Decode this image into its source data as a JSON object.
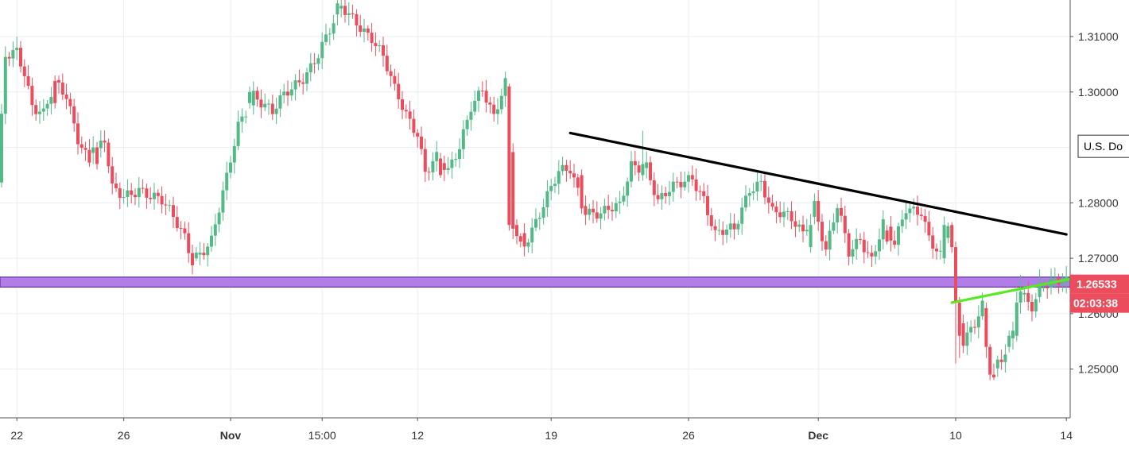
{
  "chart_data": {
    "type": "candlestick",
    "title": "",
    "xlabel": "",
    "ylabel": "",
    "ylim": [
      1.2412,
      1.3166
    ],
    "y_ticks": [
      {
        "value": 1.31,
        "label": "1.31000"
      },
      {
        "value": 1.3,
        "label": "1.30000"
      },
      {
        "value": 1.28,
        "label": "1.28000"
      },
      {
        "value": 1.27,
        "label": "1.27000"
      },
      {
        "value": 1.26,
        "label": "1.26000"
      },
      {
        "value": 1.25,
        "label": "1.25000"
      }
    ],
    "x_ticks": [
      {
        "i": 5,
        "label": "22",
        "bold": false
      },
      {
        "i": 33,
        "label": "26",
        "bold": false
      },
      {
        "i": 61,
        "label": "Nov",
        "bold": true
      },
      {
        "i": 85,
        "label": "15:00",
        "bold": false
      },
      {
        "i": 110,
        "label": "12",
        "bold": false
      },
      {
        "i": 145,
        "label": "19",
        "bold": false
      },
      {
        "i": 181,
        "label": "26",
        "bold": false
      },
      {
        "i": 215,
        "label": "Dec",
        "bold": true
      },
      {
        "i": 251,
        "label": "10",
        "bold": false
      },
      {
        "i": 280,
        "label": "14",
        "bold": false
      }
    ],
    "candle_count": 282,
    "anchors": [
      [
        0,
        1.283
      ],
      [
        2,
        1.306
      ],
      [
        5,
        1.3075
      ],
      [
        7,
        1.304
      ],
      [
        9,
        1.298
      ],
      [
        12,
        1.296
      ],
      [
        15,
        1.301
      ],
      [
        18,
        1.299
      ],
      [
        21,
        1.292
      ],
      [
        24,
        1.288
      ],
      [
        28,
        1.291
      ],
      [
        30,
        1.282
      ],
      [
        33,
        1.281
      ],
      [
        37,
        1.283
      ],
      [
        43,
        1.28
      ],
      [
        49,
        1.274
      ],
      [
        51,
        1.27
      ],
      [
        56,
        1.273
      ],
      [
        60,
        1.284
      ],
      [
        63,
        1.294
      ],
      [
        67,
        1.3
      ],
      [
        72,
        1.296
      ],
      [
        75,
        1.299
      ],
      [
        80,
        1.303
      ],
      [
        84,
        1.307
      ],
      [
        88,
        1.312
      ],
      [
        90,
        1.315
      ],
      [
        94,
        1.313
      ],
      [
        98,
        1.31
      ],
      [
        101,
        1.306
      ],
      [
        104,
        1.3
      ],
      [
        107,
        1.296
      ],
      [
        110,
        1.293
      ],
      [
        112,
        1.286
      ],
      [
        115,
        1.288
      ],
      [
        118,
        1.285
      ],
      [
        121,
        1.29
      ],
      [
        124,
        1.298
      ],
      [
        127,
        1.301
      ],
      [
        130,
        1.295
      ],
      [
        133,
        1.301
      ],
      [
        135,
        1.276
      ],
      [
        138,
        1.273
      ],
      [
        141,
        1.277
      ],
      [
        144,
        1.281
      ],
      [
        147,
        1.285
      ],
      [
        150,
        1.286
      ],
      [
        154,
        1.279
      ],
      [
        158,
        1.278
      ],
      [
        163,
        1.279
      ],
      [
        166,
        1.287
      ],
      [
        170,
        1.287
      ],
      [
        173,
        1.28
      ],
      [
        178,
        1.283
      ],
      [
        182,
        1.285
      ],
      [
        185,
        1.281
      ],
      [
        188,
        1.274
      ],
      [
        193,
        1.275
      ],
      [
        197,
        1.283
      ],
      [
        200,
        1.284
      ],
      [
        203,
        1.278
      ],
      [
        208,
        1.277
      ],
      [
        211,
        1.275
      ],
      [
        214,
        1.28
      ],
      [
        217,
        1.271
      ],
      [
        220,
        1.279
      ],
      [
        223,
        1.271
      ],
      [
        226,
        1.274
      ],
      [
        229,
        1.27
      ],
      [
        232,
        1.276
      ],
      [
        235,
        1.272
      ],
      [
        238,
        1.279
      ],
      [
        242,
        1.279
      ],
      [
        244,
        1.274
      ],
      [
        247,
        1.27
      ],
      [
        249,
        1.276
      ],
      [
        251,
        1.262
      ],
      [
        253,
        1.255
      ],
      [
        256,
        1.259
      ],
      [
        258,
        1.262
      ],
      [
        260,
        1.249
      ],
      [
        263,
        1.251
      ],
      [
        266,
        1.256
      ],
      [
        268,
        1.264
      ],
      [
        271,
        1.262
      ],
      [
        274,
        1.2653
      ]
    ],
    "overrides": [
      [
        15,
        1.302,
        1.298,
        1.303,
        1.297
      ],
      [
        25,
        1.289,
        1.29,
        1.292,
        1.287
      ],
      [
        26,
        1.29,
        1.287,
        1.291,
        1.286
      ],
      [
        52,
        1.27,
        1.271,
        1.272,
        1.2695
      ],
      [
        66,
        1.298,
        1.3,
        1.301,
        1.297
      ],
      [
        89,
        1.314,
        1.316,
        1.317,
        1.312
      ],
      [
        116,
        1.288,
        1.285,
        1.289,
        1.2845
      ],
      [
        134,
        1.301,
        1.276,
        1.3015,
        1.275
      ],
      [
        136,
        1.276,
        1.274,
        1.277,
        1.2725
      ],
      [
        137,
        1.274,
        1.273,
        1.2745,
        1.272
      ],
      [
        153,
        1.285,
        1.279,
        1.286,
        1.278
      ],
      [
        169,
        1.285,
        1.287,
        1.293,
        1.284
      ],
      [
        213,
        1.272,
        1.276,
        1.278,
        1.271
      ],
      [
        233,
        1.275,
        1.273,
        1.276,
        1.2725
      ],
      [
        248,
        1.27,
        1.276,
        1.2775,
        1.269
      ],
      [
        250,
        1.276,
        1.272,
        1.2765,
        1.271
      ],
      [
        251,
        1.272,
        1.262,
        1.273,
        1.251
      ],
      [
        252,
        1.262,
        1.256,
        1.263,
        1.252
      ],
      [
        259,
        1.261,
        1.254,
        1.262,
        1.252
      ],
      [
        260,
        1.254,
        1.249,
        1.2545,
        1.248
      ],
      [
        261,
        1.249,
        1.2485,
        1.251,
        1.248
      ],
      [
        265,
        1.254,
        1.256,
        1.257,
        1.253
      ],
      [
        267,
        1.256,
        1.262,
        1.264,
        1.255
      ],
      [
        268,
        1.262,
        1.264,
        1.267,
        1.26
      ],
      [
        273,
        1.263,
        1.265,
        1.268,
        1.262
      ]
    ],
    "horizontal_band": {
      "from": 1.2648,
      "to": 1.2666,
      "color": "#b07ee6",
      "border": "#6a2f9e"
    },
    "trendlines": [
      {
        "name": "descending-resistance",
        "color": "#000000",
        "from": [
          150,
          1.2926
        ],
        "to": [
          280,
          1.2743
        ]
      },
      {
        "name": "short-trendline",
        "color": "#55ea22",
        "from": [
          250,
          1.262
        ],
        "to": [
          282,
          1.2664
        ]
      }
    ],
    "vertical_gridlines": [
      5,
      33,
      61,
      85,
      110,
      145,
      181,
      215,
      251
    ],
    "last_price": {
      "value": 1.26533,
      "label": "1.26533",
      "countdown": "02:03:38"
    },
    "legend_tag": "U.S. Do",
    "colors": {
      "up": "#53b987",
      "down": "#eb4d5c",
      "grid": "#e8eef3",
      "axis": "#555555",
      "price_tag": "#eb4d5c"
    }
  }
}
